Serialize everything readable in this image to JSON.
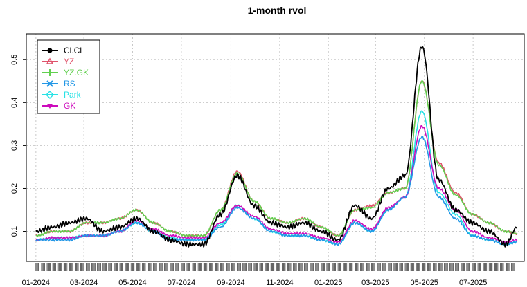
{
  "chart_data": {
    "type": "line",
    "title": "1-month rvol",
    "xlabel": "",
    "ylabel": "",
    "ylim": [
      0.03,
      0.56
    ],
    "x_range": [
      "2023-12-20",
      "2025-09-03"
    ],
    "y_ticks": [
      "0.1",
      "0.2",
      "0.3",
      "0.4",
      "0.5"
    ],
    "x_ticks": [
      {
        "date": "2024-01-01",
        "label": "01-2024"
      },
      {
        "date": "2024-03-01",
        "label": "03-2024"
      },
      {
        "date": "2024-05-01",
        "label": "05-2024"
      },
      {
        "date": "2024-07-01",
        "label": "07-2024"
      },
      {
        "date": "2024-09-01",
        "label": "09-2024"
      },
      {
        "date": "2024-11-01",
        "label": "11-2024"
      },
      {
        "date": "2025-01-01",
        "label": "01-2025"
      },
      {
        "date": "2025-03-01",
        "label": "03-2025"
      },
      {
        "date": "2025-05-01",
        "label": "05-2025"
      },
      {
        "date": "2025-07-01",
        "label": "07-2025"
      }
    ],
    "grid": true,
    "legend_position": "top-left",
    "dates": [
      "2024-01-01",
      "2024-01-22",
      "2024-02-12",
      "2024-03-04",
      "2024-03-25",
      "2024-04-15",
      "2024-05-06",
      "2024-05-27",
      "2024-06-17",
      "2024-07-08",
      "2024-07-29",
      "2024-08-19",
      "2024-09-09",
      "2024-09-30",
      "2024-10-21",
      "2024-11-11",
      "2024-12-02",
      "2024-12-23",
      "2025-01-13",
      "2025-02-03",
      "2025-02-24",
      "2025-03-17",
      "2025-04-07",
      "2025-04-28",
      "2025-05-19",
      "2025-06-09",
      "2025-06-30",
      "2025-07-21",
      "2025-08-11",
      "2025-08-25"
    ],
    "series": [
      {
        "name": "Cl.Cl",
        "color": "#000000",
        "marker": "circle",
        "values": [
          0.1,
          0.11,
          0.12,
          0.13,
          0.1,
          0.11,
          0.13,
          0.1,
          0.08,
          0.07,
          0.07,
          0.14,
          0.23,
          0.16,
          0.12,
          0.11,
          0.12,
          0.1,
          0.08,
          0.16,
          0.13,
          0.2,
          0.23,
          0.53,
          0.22,
          0.15,
          0.12,
          0.1,
          0.07,
          0.11
        ]
      },
      {
        "name": "YZ",
        "color": "#DF536B",
        "marker": "triangle",
        "values": [
          0.09,
          0.1,
          0.1,
          0.12,
          0.12,
          0.13,
          0.15,
          0.12,
          0.1,
          0.09,
          0.09,
          0.15,
          0.24,
          0.17,
          0.13,
          0.12,
          0.13,
          0.11,
          0.09,
          0.15,
          0.16,
          0.19,
          0.2,
          0.45,
          0.26,
          0.19,
          0.14,
          0.12,
          0.1,
          0.095
        ]
      },
      {
        "name": "YZ.GK",
        "color": "#61D04F",
        "marker": "plus",
        "values": [
          0.09,
          0.1,
          0.1,
          0.12,
          0.12,
          0.13,
          0.15,
          0.12,
          0.1,
          0.09,
          0.09,
          0.15,
          0.235,
          0.17,
          0.13,
          0.12,
          0.13,
          0.11,
          0.09,
          0.15,
          0.155,
          0.19,
          0.2,
          0.45,
          0.255,
          0.185,
          0.14,
          0.12,
          0.1,
          0.095
        ]
      },
      {
        "name": "RS",
        "color": "#2297E6",
        "marker": "cross",
        "values": [
          0.08,
          0.08,
          0.08,
          0.09,
          0.09,
          0.1,
          0.12,
          0.1,
          0.08,
          0.08,
          0.08,
          0.11,
          0.155,
          0.13,
          0.1,
          0.09,
          0.09,
          0.08,
          0.07,
          0.12,
          0.1,
          0.15,
          0.18,
          0.32,
          0.18,
          0.13,
          0.09,
          0.08,
          0.07,
          0.075
        ]
      },
      {
        "name": "Park",
        "color": "#28E2E5",
        "marker": "diamond",
        "values": [
          0.08,
          0.085,
          0.085,
          0.09,
          0.09,
          0.1,
          0.12,
          0.1,
          0.085,
          0.08,
          0.08,
          0.115,
          0.16,
          0.13,
          0.1,
          0.09,
          0.09,
          0.08,
          0.07,
          0.12,
          0.1,
          0.15,
          0.18,
          0.38,
          0.19,
          0.14,
          0.09,
          0.08,
          0.07,
          0.075
        ]
      },
      {
        "name": "GK",
        "color": "#CD0BBC",
        "marker": "triangle-down",
        "values": [
          0.08,
          0.085,
          0.085,
          0.09,
          0.09,
          0.1,
          0.125,
          0.105,
          0.09,
          0.085,
          0.085,
          0.12,
          0.16,
          0.135,
          0.105,
          0.095,
          0.095,
          0.085,
          0.075,
          0.125,
          0.105,
          0.155,
          0.18,
          0.345,
          0.2,
          0.15,
          0.1,
          0.085,
          0.075,
          0.08
        ]
      }
    ]
  }
}
